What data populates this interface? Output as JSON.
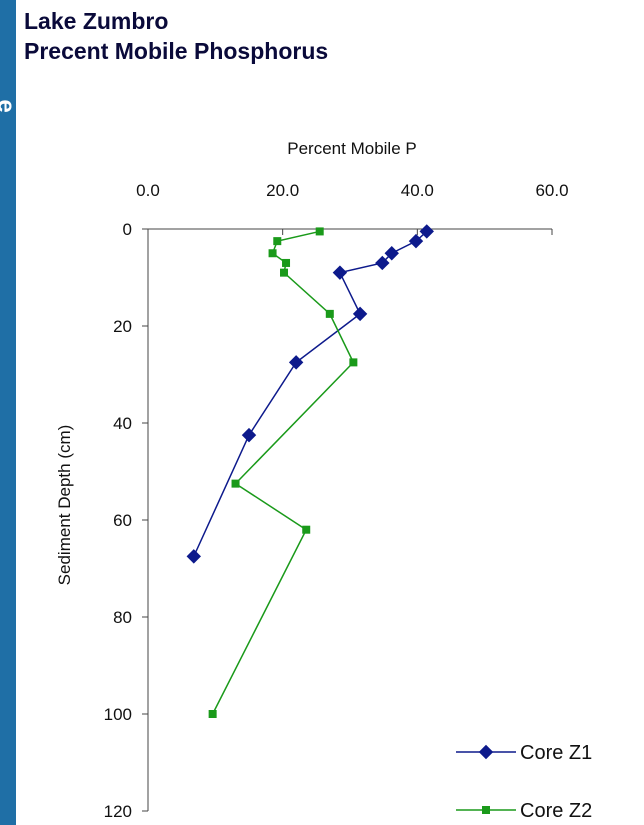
{
  "slide": {
    "side_glyph": "e",
    "title_lines": [
      "Lake Zumbro",
      "Precent Mobile Phosphorus"
    ]
  },
  "colors": {
    "sidebar": "#1f6fa6",
    "core_z1": "#0d1a8c",
    "core_z2": "#1a9a1a"
  },
  "chart_data": {
    "type": "scatter",
    "xlabel": "Percent Mobile P",
    "ylabel": "Sediment Depth (cm)",
    "x_ticks": [
      "0.0",
      "20.0",
      "40.0",
      "60.0"
    ],
    "y_ticks": [
      "0",
      "20",
      "40",
      "60",
      "80",
      "100",
      "120"
    ],
    "xlim": [
      0,
      60
    ],
    "ylim": [
      0,
      120
    ],
    "y_reversed": true,
    "x_axis_position": "top",
    "legend_position": "bottom-right",
    "series": [
      {
        "name": "Core Z1",
        "marker": "diamond",
        "points": [
          [
            41.4,
            0.5
          ],
          [
            39.8,
            2.5
          ],
          [
            36.2,
            5
          ],
          [
            34.8,
            7
          ],
          [
            28.5,
            9
          ],
          [
            31.5,
            17.5
          ],
          [
            22.0,
            27.5
          ],
          [
            15.0,
            42.5
          ],
          [
            6.8,
            67.5
          ]
        ]
      },
      {
        "name": "Core Z2",
        "marker": "square",
        "points": [
          [
            25.5,
            0.5
          ],
          [
            19.2,
            2.5
          ],
          [
            18.5,
            5
          ],
          [
            20.5,
            7
          ],
          [
            20.2,
            9
          ],
          [
            27.0,
            17.5
          ],
          [
            30.5,
            27.5
          ],
          [
            13.0,
            52.5
          ],
          [
            23.5,
            62
          ],
          [
            9.6,
            100
          ]
        ]
      }
    ]
  }
}
